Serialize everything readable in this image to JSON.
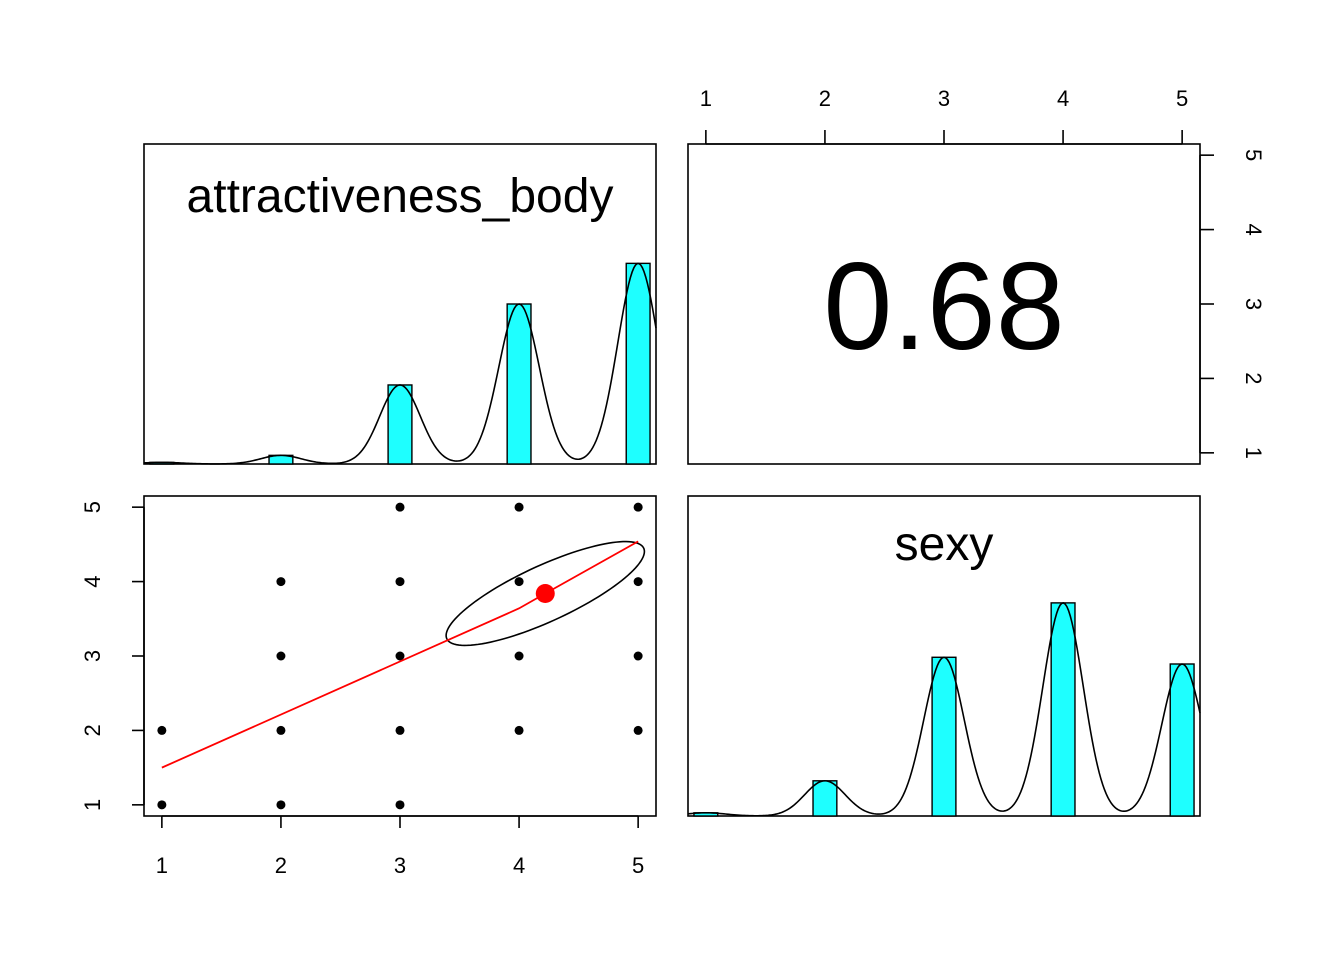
{
  "chart_data": {
    "type": "scatter",
    "variables": [
      "attractiveness_body",
      "sexy"
    ],
    "correlation": "0.68",
    "axis_ticks": [
      "1",
      "2",
      "3",
      "4",
      "5"
    ],
    "xlim": [
      0.85,
      5.15
    ],
    "ylim": [
      0.85,
      5.15
    ],
    "grid": false,
    "colors": {
      "histogram_fill": "#1effff",
      "smoother": "#ff0000",
      "points": "#000000",
      "density": "#000000",
      "ellipse": "#000000"
    },
    "histograms": [
      {
        "variable": "attractiveness_body",
        "bins": [
          1,
          2,
          3,
          4,
          5
        ],
        "relative_heights": [
          0.005,
          0.027,
          0.247,
          0.5,
          0.627
        ],
        "density_kde": true
      },
      {
        "variable": "sexy",
        "bins": [
          1,
          2,
          3,
          4,
          5
        ],
        "relative_heights": [
          0.01,
          0.11,
          0.496,
          0.666,
          0.475
        ],
        "density_kde": true
      }
    ],
    "scatter": {
      "x_variable": "attractiveness_body",
      "y_variable": "sexy",
      "points": [
        [
          1,
          1
        ],
        [
          1,
          2
        ],
        [
          2,
          1
        ],
        [
          2,
          2
        ],
        [
          2,
          3
        ],
        [
          2,
          4
        ],
        [
          3,
          1
        ],
        [
          3,
          2
        ],
        [
          3,
          3
        ],
        [
          3,
          4
        ],
        [
          3,
          5
        ],
        [
          4,
          2
        ],
        [
          4,
          3
        ],
        [
          4,
          4
        ],
        [
          4,
          5
        ],
        [
          5,
          2
        ],
        [
          5,
          3
        ],
        [
          5,
          4
        ],
        [
          5,
          5
        ]
      ],
      "mean_point": [
        4.22,
        3.84
      ],
      "smoother_line": [
        [
          1,
          1.5
        ],
        [
          4,
          3.64
        ],
        [
          4.22,
          3.84
        ],
        [
          5,
          4.54
        ]
      ],
      "ellipse": {
        "center": [
          4.22,
          3.84
        ],
        "radius_major": 1.035,
        "radius_minor": 0.33,
        "angle_deg": 38.8
      }
    }
  }
}
